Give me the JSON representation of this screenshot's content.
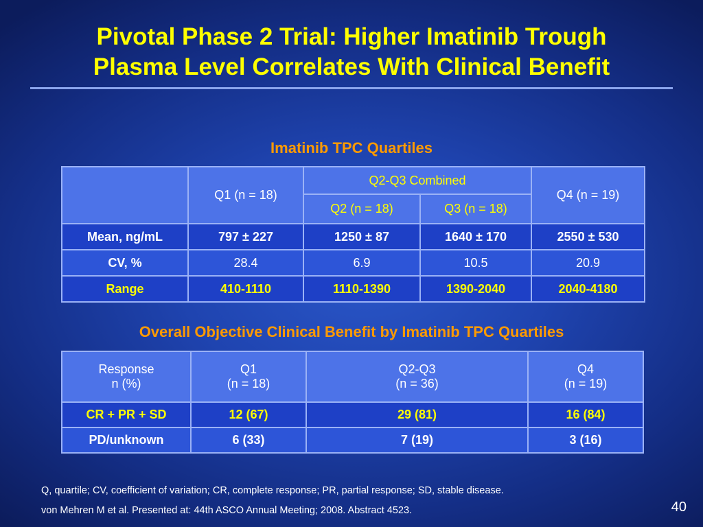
{
  "title": {
    "line1": "Pivotal Phase 2 Trial: Higher Imatinib Trough",
    "line2": "Plasma Level Correlates With Clinical Benefit"
  },
  "table1": {
    "heading": "Imatinib TPC Quartiles",
    "header": {
      "q1": "Q1 (n = 18)",
      "combined": "Q2-Q3 Combined",
      "q2": "Q2 (n = 18)",
      "q3": "Q3 (n = 18)",
      "q4": "Q4 (n = 19)"
    },
    "rows": [
      {
        "label": "Mean, ng/mL",
        "q1": "797 ± 227",
        "q2": "1250 ± 87",
        "q3": "1640 ± 170",
        "q4": "2550 ± 530"
      },
      {
        "label": "CV, %",
        "q1": "28.4",
        "q2": "6.9",
        "q3": "10.5",
        "q4": "20.9"
      },
      {
        "label": "Range",
        "q1": "410-1110",
        "q2": "1110-1390",
        "q3": "1390-2040",
        "q4": "2040-4180"
      }
    ]
  },
  "table2": {
    "heading": "Overall Objective Clinical Benefit by Imatinib TPC Quartiles",
    "header": {
      "response_l1": "Response",
      "response_l2": "n (%)",
      "q1_l1": "Q1",
      "q1_l2": "(n = 18)",
      "q23_l1": "Q2-Q3",
      "q23_l2": "(n = 36)",
      "q4_l1": "Q4",
      "q4_l2": "(n = 19)"
    },
    "rows": [
      {
        "label": "CR + PR + SD",
        "q1": "12 (67)",
        "q23": "29 (81)",
        "q4": "16 (84)"
      },
      {
        "label": "PD/unknown",
        "q1": "6 (33)",
        "q23": "7 (19)",
        "q4": "3 (16)"
      }
    ]
  },
  "footnotes": {
    "abbrev": "Q, quartile; CV, coefficient of variation; CR, complete response; PR, partial response; SD, stable disease.",
    "citation": "von Mehren M et al. Presented at: 44th ASCO Annual Meeting; 2008. Abstract 4523."
  },
  "page_number": "40",
  "colors": {
    "title": "#ffff00",
    "section_heading": "#ff9a00",
    "table_header_bg": "#4d73e8",
    "table_row_bg": "#1e40c6",
    "table_border": "#9bb2f6"
  }
}
